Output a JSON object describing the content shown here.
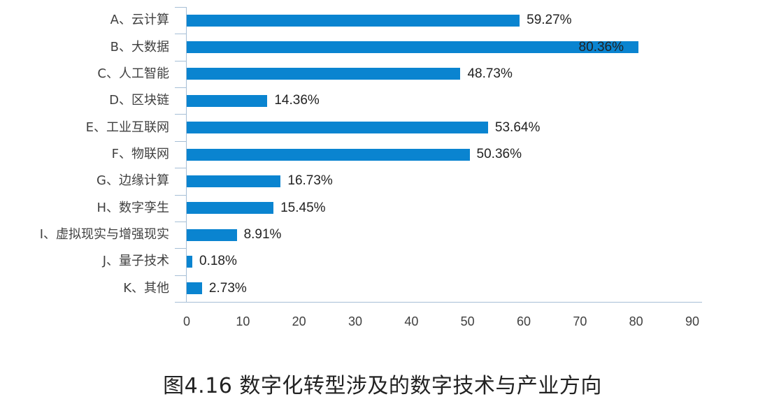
{
  "chart_data": {
    "type": "bar",
    "orientation": "horizontal",
    "title": "图4.16 数字化转型涉及的数字技术与产业方向",
    "xlabel": "",
    "ylabel": "",
    "xlim": [
      0,
      90
    ],
    "x_ticks": [
      0,
      10,
      20,
      30,
      40,
      50,
      60,
      70,
      80,
      90
    ],
    "grid": false,
    "legend": null,
    "bar_color": "#0a84d0",
    "categories": [
      "A、云计算",
      "B、大数据",
      "C、人工智能",
      "D、区块链",
      "E、工业互联网",
      "F、物联网",
      "G、边缘计算",
      "H、数字孪生",
      "I、虚拟现实与增强现实",
      "J、量子技术",
      "K、其他"
    ],
    "values": [
      59.27,
      80.36,
      48.73,
      14.36,
      53.64,
      50.36,
      16.73,
      15.45,
      8.91,
      0.18,
      2.73
    ],
    "value_labels": [
      "59.27%",
      "80.36%",
      "48.73%",
      "14.36%",
      "53.64%",
      "50.36%",
      "16.73%",
      "15.45%",
      "8.91%",
      "0.18%",
      "2.73%"
    ]
  },
  "caption": "图4.16 数字化转型涉及的数字技术与产业方向"
}
